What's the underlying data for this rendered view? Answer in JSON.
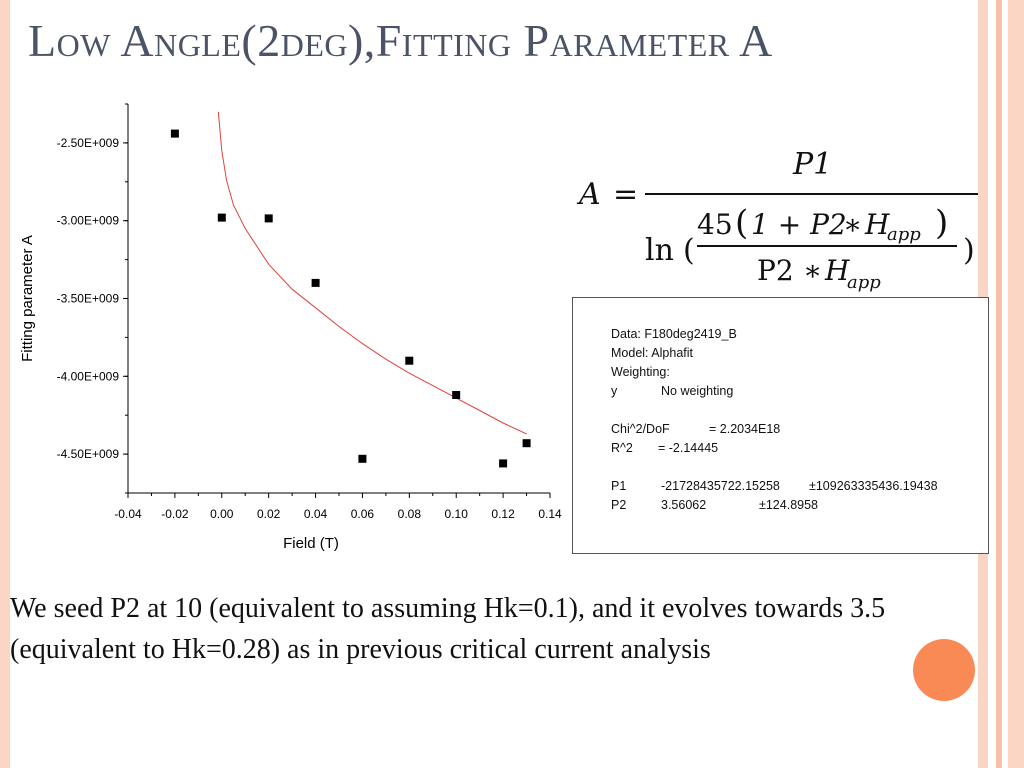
{
  "slide": {
    "title": "Low Angle(2deg),Fitting Parameter A",
    "body_text": "We seed P2 at 10 (equivalent to assuming Hk=0.1), and it evolves towards 3.5 (equivalent to Hk=0.28) as in previous critical current analysis",
    "colors": {
      "title": "#4b5367",
      "accent_circle": "#fa8a55",
      "stripe": "#fbd5c3",
      "fit_curve": "#e0403a"
    }
  },
  "formula": {
    "lhs": "A",
    "numerator": "P1",
    "ln": "ln",
    "coef": "45",
    "one_plus": "1 + P2",
    "h": "H",
    "h_sub": "app",
    "denominator_p2": "P2",
    "star": "∗"
  },
  "fit_box": {
    "data_label": "Data: F180deg2419_B",
    "model_label": "Model: Alphafit",
    "weighting_label": "Weighting:",
    "y_label": "y",
    "y_value": "No weighting",
    "chi_label": "Chi^2/DoF",
    "chi_value": "= 2.2034E18",
    "r2_label": "R^2",
    "r2_value": "=  -2.14445",
    "p1_label": "P1",
    "p1_value": "-21728435722.15258",
    "p1_error": "±109263335436.19438",
    "p2_label": "P2",
    "p2_value": "3.56062",
    "p2_error": "±124.8958"
  },
  "chart_data": {
    "type": "scatter",
    "xlabel": "Field (T)",
    "ylabel": "Fitting parameter A",
    "xlim": [
      -0.04,
      0.14
    ],
    "ylim": [
      -4750000000.0,
      -2250000000.0
    ],
    "x_ticks": [
      "-0.04",
      "-0.02",
      "0.00",
      "0.02",
      "0.04",
      "0.06",
      "0.08",
      "0.10",
      "0.12",
      "0.14"
    ],
    "x_tick_values": [
      -0.04,
      -0.02,
      0.0,
      0.02,
      0.04,
      0.06,
      0.08,
      0.1,
      0.12,
      0.14
    ],
    "y_ticks": [
      "-2.50E+009",
      "-3.00E+009",
      "-3.50E+009",
      "-4.00E+009",
      "-4.50E+009"
    ],
    "y_tick_values": [
      -2500000000.0,
      -3000000000.0,
      -3500000000.0,
      -4000000000.0,
      -4500000000.0
    ],
    "series": [
      {
        "type": "scatter",
        "x": [
          -0.02,
          0.0,
          0.02,
          0.04,
          0.06,
          0.08,
          0.1,
          0.12,
          0.13
        ],
        "y": [
          -2440000000.0,
          -2980000000.0,
          -2985000000.0,
          -3400000000.0,
          -4530000000.0,
          -3900000000.0,
          -4120000000.0,
          -4560000000.0,
          -4430000000.0
        ]
      },
      {
        "type": "line",
        "x": [
          -0.0015,
          0.0,
          0.002,
          0.005,
          0.01,
          0.02,
          0.03,
          0.04,
          0.05,
          0.06,
          0.07,
          0.08,
          0.09,
          0.1,
          0.11,
          0.12,
          0.13
        ],
        "y": [
          -2300000000.0,
          -2550000000.0,
          -2740000000.0,
          -2900000000.0,
          -3050000000.0,
          -3280000000.0,
          -3440000000.0,
          -3560000000.0,
          -3680000000.0,
          -3790000000.0,
          -3890000000.0,
          -3980000000.0,
          -4060000000.0,
          -4140000000.0,
          -4220000000.0,
          -4300000000.0,
          -4370000000.0
        ]
      }
    ]
  }
}
